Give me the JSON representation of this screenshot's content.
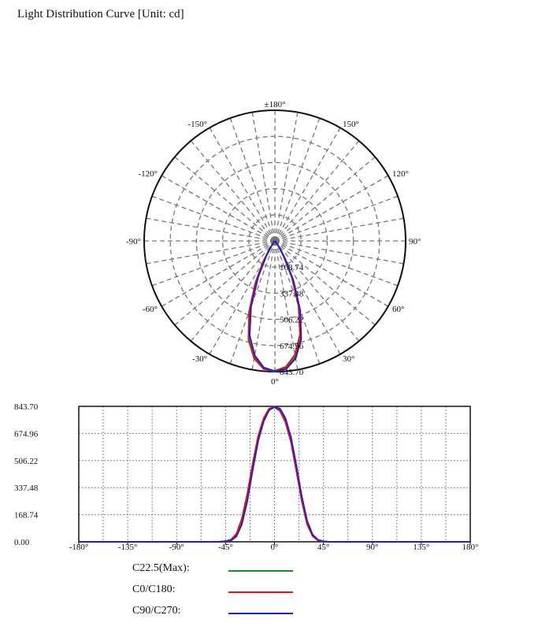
{
  "title": "Light Distribution Curve [Unit: cd]",
  "polar": {
    "angle_labels": [
      {
        "deg": 180,
        "text": "±180°"
      },
      {
        "deg": 150,
        "text": "150°"
      },
      {
        "deg": -150,
        "text": "-150°"
      },
      {
        "deg": 120,
        "text": "120°"
      },
      {
        "deg": -120,
        "text": "-120°"
      },
      {
        "deg": 90,
        "text": "90°"
      },
      {
        "deg": -90,
        "text": "-90°"
      },
      {
        "deg": 60,
        "text": "60°"
      },
      {
        "deg": -60,
        "text": "-60°"
      },
      {
        "deg": 30,
        "text": "30°"
      },
      {
        "deg": -30,
        "text": "-30°"
      },
      {
        "deg": 0,
        "text": "0°"
      }
    ],
    "ring_labels": [
      "168.74",
      "337.48",
      "506.22",
      "674.96",
      "843.70"
    ]
  },
  "chart_data": {
    "type": "line",
    "x": [
      -180,
      -90,
      -60,
      -50,
      -45,
      -40,
      -35,
      -30,
      -25,
      -20,
      -15,
      -10,
      -5,
      0,
      5,
      10,
      15,
      20,
      25,
      30,
      35,
      40,
      45,
      50,
      60,
      90,
      180
    ],
    "series": [
      {
        "name": "C22.5(Max):",
        "color": "#1a8a1a",
        "values": [
          0,
          0,
          0,
          0,
          3,
          10,
          40,
          120,
          270,
          460,
          640,
          760,
          825,
          843.7,
          825,
          760,
          640,
          460,
          270,
          120,
          40,
          10,
          3,
          0,
          0,
          0,
          0
        ]
      },
      {
        "name": "C0/C180:",
        "color": "#e01818",
        "values": [
          0,
          0,
          0,
          1,
          4,
          14,
          50,
          145,
          300,
          490,
          660,
          770,
          830,
          838,
          815,
          745,
          625,
          445,
          255,
          108,
          35,
          8,
          2,
          0,
          0,
          0,
          0
        ]
      },
      {
        "name": "C90/C270:",
        "color": "#1f1fd6",
        "values": [
          0,
          0,
          0,
          0,
          2,
          8,
          34,
          110,
          255,
          450,
          630,
          750,
          820,
          840,
          830,
          770,
          655,
          478,
          285,
          130,
          45,
          12,
          3,
          0,
          0,
          0,
          0
        ]
      }
    ],
    "xticks": [
      "-180°",
      "-135°",
      "-90°",
      "-45°",
      "0°",
      "45°",
      "90°",
      "135°",
      "180°"
    ],
    "xtick_values": [
      -180,
      -135,
      -90,
      -45,
      0,
      45,
      90,
      135,
      180
    ],
    "yticks": [
      "0.00",
      "168.74",
      "337.48",
      "506.22",
      "674.96",
      "843.70"
    ],
    "ytick_values": [
      0,
      168.74,
      337.48,
      506.22,
      674.96,
      843.7
    ],
    "xlim": [
      -180,
      180
    ],
    "ylim": [
      0,
      843.7
    ],
    "grid": true,
    "legend_position": "bottom"
  }
}
